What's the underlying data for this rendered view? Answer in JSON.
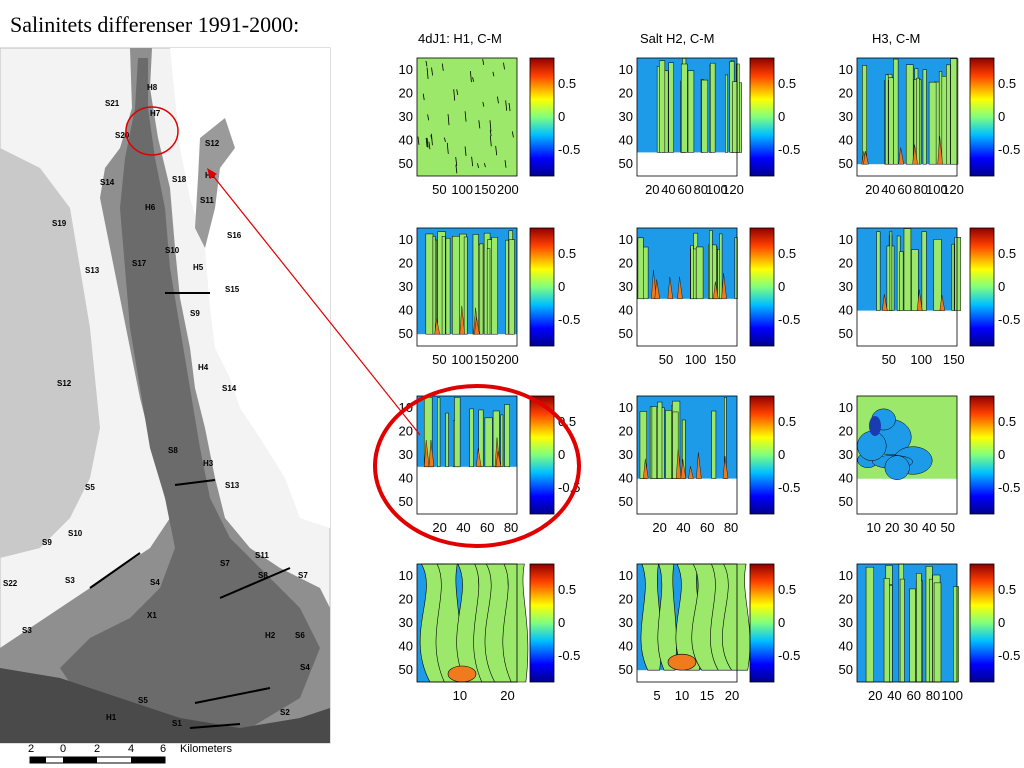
{
  "title": "Salinitets differenser 1991-2000:",
  "map": {
    "scale_labels": [
      "2",
      "0",
      "2",
      "4",
      "6"
    ],
    "scale_unit": "Kilometers",
    "station_labels": [
      "H8",
      "H7",
      "S21",
      "S20",
      "S12",
      "S18",
      "H9",
      "S14",
      "H6",
      "S11",
      "S19",
      "S16",
      "S17",
      "S10",
      "H5",
      "S13",
      "S15",
      "S9",
      "H4",
      "S12",
      "S14",
      "S8",
      "H3",
      "S13",
      "S5",
      "S10",
      "S11",
      "S9",
      "S7",
      "S22",
      "S3",
      "S4",
      "S7",
      "S8",
      "X1",
      "S6",
      "H2",
      "S3",
      "S4",
      "S5",
      "S2",
      "S1",
      "H1"
    ]
  },
  "colorbar": {
    "ticks": [
      "0.5",
      "0",
      "-0.5"
    ],
    "range": [
      -0.9,
      0.9
    ]
  },
  "chart_data": [
    {
      "type": "heatmap",
      "column": "4dJ1: H1, C-M",
      "row": 1,
      "yticks": [
        "10",
        "20",
        "30",
        "40",
        "50"
      ],
      "xticks": [
        "50",
        "100",
        "150",
        "200"
      ],
      "xlim": [
        1,
        220
      ],
      "ylim": [
        5,
        55
      ],
      "depth_max": 55,
      "pattern": "mostly-zero"
    },
    {
      "type": "heatmap",
      "column": "Salt H2, C-M",
      "row": 1,
      "yticks": [
        "10",
        "20",
        "30",
        "40",
        "50"
      ],
      "xticks": [
        "20",
        "40",
        "60",
        "80",
        "100",
        "120"
      ],
      "xlim": [
        1,
        125
      ],
      "ylim": [
        5,
        55
      ],
      "depth_max": 45,
      "pattern": "bands"
    },
    {
      "type": "heatmap",
      "column": "H3, C-M",
      "row": 1,
      "yticks": [
        "10",
        "20",
        "30",
        "40",
        "50"
      ],
      "xticks": [
        "20",
        "40",
        "60",
        "80",
        "100",
        "120"
      ],
      "xlim": [
        1,
        125
      ],
      "ylim": [
        5,
        55
      ],
      "depth_max": 50,
      "pattern": "bands-orange"
    },
    {
      "type": "heatmap",
      "column": "4dJ1: H1, C-M",
      "row": 2,
      "yticks": [
        "10",
        "20",
        "30",
        "40",
        "50"
      ],
      "xticks": [
        "50",
        "100",
        "150",
        "200"
      ],
      "xlim": [
        1,
        220
      ],
      "ylim": [
        5,
        55
      ],
      "depth_max": 50,
      "pattern": "bands-orange"
    },
    {
      "type": "heatmap",
      "column": "Salt H2, C-M",
      "row": 2,
      "yticks": [
        "10",
        "20",
        "30",
        "40",
        "50"
      ],
      "xticks": [
        "50",
        "100",
        "150"
      ],
      "xlim": [
        1,
        170
      ],
      "ylim": [
        5,
        55
      ],
      "depth_max": 35,
      "pattern": "bands-orange"
    },
    {
      "type": "heatmap",
      "column": "H3, C-M",
      "row": 2,
      "yticks": [
        "10",
        "20",
        "30",
        "40",
        "50"
      ],
      "xticks": [
        "50",
        "100",
        "150"
      ],
      "xlim": [
        1,
        155
      ],
      "ylim": [
        5,
        55
      ],
      "depth_max": 40,
      "pattern": "bands-orange"
    },
    {
      "type": "heatmap",
      "column": "4dJ1: H1, C-M",
      "row": 3,
      "yticks": [
        "10",
        "20",
        "30",
        "40",
        "50"
      ],
      "xticks": [
        "20",
        "40",
        "60",
        "80"
      ],
      "xlim": [
        1,
        85
      ],
      "ylim": [
        5,
        55
      ],
      "depth_max": 35,
      "pattern": "bands-orange"
    },
    {
      "type": "heatmap",
      "column": "Salt H2, C-M",
      "row": 3,
      "yticks": [
        "10",
        "20",
        "30",
        "40",
        "50"
      ],
      "xticks": [
        "20",
        "40",
        "60",
        "80"
      ],
      "xlim": [
        1,
        85
      ],
      "ylim": [
        5,
        55
      ],
      "depth_max": 40,
      "pattern": "bands-orange"
    },
    {
      "type": "heatmap",
      "column": "H3, C-M",
      "row": 3,
      "yticks": [
        "10",
        "20",
        "30",
        "40",
        "50"
      ],
      "xticks": [
        "10",
        "20",
        "30",
        "40",
        "50"
      ],
      "xlim": [
        1,
        55
      ],
      "ylim": [
        5,
        55
      ],
      "depth_max": 40,
      "pattern": "blue-patches"
    },
    {
      "type": "heatmap",
      "column": "4dJ1: H1, C-M",
      "row": 4,
      "yticks": [
        "10",
        "20",
        "30",
        "40",
        "50"
      ],
      "xticks": [
        "10",
        "20"
      ],
      "xlim": [
        1,
        22
      ],
      "ylim": [
        5,
        55
      ],
      "depth_max": 55,
      "pattern": "smooth"
    },
    {
      "type": "heatmap",
      "column": "Salt H2, C-M",
      "row": 4,
      "yticks": [
        "10",
        "20",
        "30",
        "40",
        "50"
      ],
      "xticks": [
        "5",
        "10",
        "15",
        "20"
      ],
      "xlim": [
        1,
        21
      ],
      "ylim": [
        5,
        55
      ],
      "depth_max": 50,
      "pattern": "smooth"
    },
    {
      "type": "heatmap",
      "column": "H3, C-M",
      "row": 4,
      "yticks": [
        "10",
        "20",
        "30",
        "40",
        "50"
      ],
      "xticks": [
        "20",
        "40",
        "60",
        "80",
        "100"
      ],
      "xlim": [
        1,
        105
      ],
      "ylim": [
        5,
        55
      ],
      "depth_max": 55,
      "pattern": "bands"
    }
  ]
}
